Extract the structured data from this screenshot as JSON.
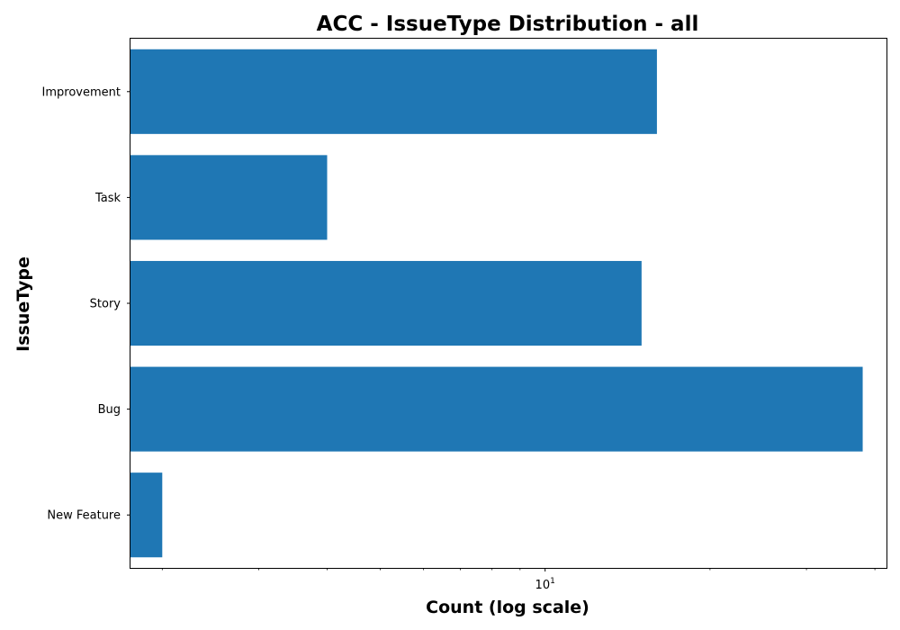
{
  "chart_data": {
    "type": "bar",
    "orientation": "horizontal",
    "title": "ACC - IssueType Distribution - all",
    "xlabel": "Count (log scale)",
    "ylabel": "IssueType",
    "x_scale": "log",
    "xlim": [
      1.75,
      42
    ],
    "grid": false,
    "categories": [
      "New Feature",
      "Bug",
      "Story",
      "Task",
      "Improvement"
    ],
    "values": [
      2,
      38,
      15,
      4,
      16
    ],
    "x_ticks": [
      {
        "base": "10",
        "exponent": "1",
        "value": 10
      }
    ],
    "bar_color": "#1f77b4"
  }
}
